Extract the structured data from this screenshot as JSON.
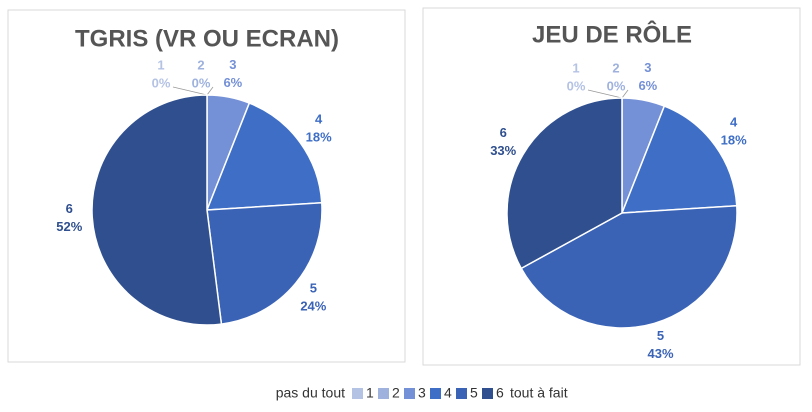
{
  "chart_data": [
    {
      "type": "pie",
      "title": "TGRIS (VR OU ECRAN)",
      "categories": [
        "1",
        "2",
        "3",
        "4",
        "5",
        "6"
      ],
      "values": [
        0,
        0,
        6,
        18,
        24,
        52
      ],
      "value_labels": [
        "0%",
        "0%",
        "6%",
        "18%",
        "24%",
        "52%"
      ],
      "colors": [
        "#b4c2e4",
        "#9fb2de",
        "#7490d6",
        "#3e6ec6",
        "#3a63b6",
        "#2f4f8e"
      ]
    },
    {
      "type": "pie",
      "title": "JEU DE RÔLE",
      "categories": [
        "1",
        "2",
        "3",
        "4",
        "5",
        "6"
      ],
      "values": [
        0,
        0,
        6,
        18,
        43,
        33
      ],
      "value_labels": [
        "0%",
        "0%",
        "6%",
        "18%",
        "43%",
        "33%"
      ],
      "colors": [
        "#b4c2e4",
        "#9fb2de",
        "#7490d6",
        "#3e6ec6",
        "#3a63b6",
        "#2f4f8e"
      ]
    }
  ],
  "legend": {
    "left_label": "pas du tout",
    "right_label": "tout à fait"
  }
}
